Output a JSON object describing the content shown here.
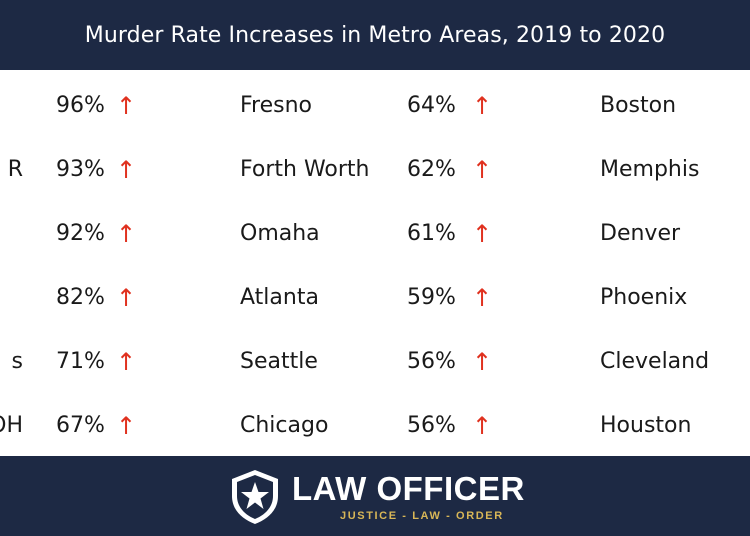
{
  "header": {
    "title": "Murder Rate Increases in Metro Areas, 2019 to 2020"
  },
  "colors": {
    "navy": "#1d2944",
    "arrow_red": "#e0311f",
    "gold": "#d8b657"
  },
  "icons": {
    "increase": "arrow-up-icon",
    "logo": "shield-star-icon"
  },
  "chart_data": {
    "type": "table",
    "title": "Murder Rate Increases in Metro Areas, 2019 to 2020",
    "rows": [
      {
        "left_cut": "",
        "c1": "96%",
        "city1": "Fresno",
        "c2": "64%",
        "city2": "Boston"
      },
      {
        "left_cut": "R",
        "c1": "93%",
        "city1": "Forth Worth",
        "c2": "62%",
        "city2": "Memphis"
      },
      {
        "left_cut": "",
        "c1": "92%",
        "city1": "Omaha",
        "c2": "61%",
        "city2": "Denver"
      },
      {
        "left_cut": "",
        "c1": "82%",
        "city1": "Atlanta",
        "c2": "59%",
        "city2": "Phoenix"
      },
      {
        "left_cut": "s",
        "c1": "71%",
        "city1": "Seattle",
        "c2": "56%",
        "city2": "Cleveland"
      },
      {
        "left_cut": "OH",
        "c1": "67%",
        "city1": "Chicago",
        "c2": "56%",
        "city2": "Houston"
      }
    ],
    "arrow": "↑"
  },
  "footer": {
    "brand": "LAW OFFICER",
    "tagline": "JUSTICE - LAW - ORDER"
  }
}
